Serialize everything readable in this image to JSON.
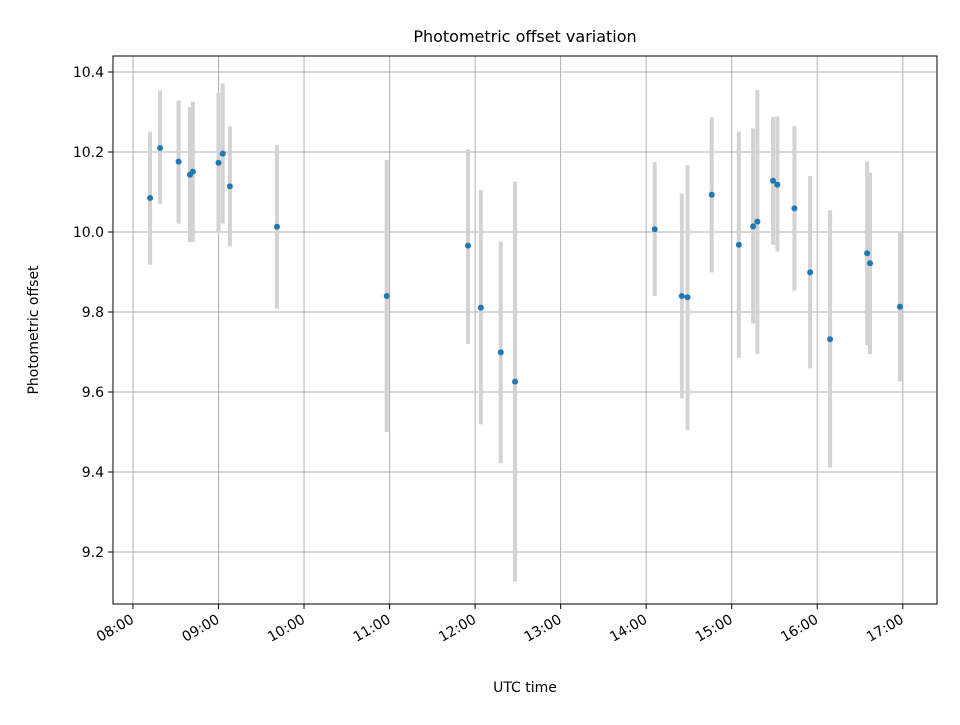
{
  "chart_data": {
    "type": "scatter",
    "title": "Photometric offset variation",
    "xlabel": "UTC time",
    "ylabel": "Photometric offset",
    "x_tick_labels": [
      "08:00",
      "09:00",
      "10:00",
      "11:00",
      "12:00",
      "13:00",
      "14:00",
      "15:00",
      "16:00",
      "17:00"
    ],
    "x_tick_values": [
      "08:00",
      "09:00",
      "10:00",
      "11:00",
      "12:00",
      "13:00",
      "14:00",
      "15:00",
      "16:00",
      "17:00"
    ],
    "xlim": [
      "07:46",
      "17:24"
    ],
    "y_ticks": [
      9.2,
      9.4,
      9.6,
      9.8,
      10.0,
      10.2,
      10.4
    ],
    "y_tick_labels": [
      "9.2",
      "9.4",
      "9.6",
      "9.8",
      "10.0",
      "10.2",
      "10.4"
    ],
    "ylim": [
      9.07,
      10.44
    ],
    "grid": true,
    "legend": false,
    "colors": {
      "marker": "#1f77b4",
      "errorbar": "#d3d3d3",
      "grid": "#b0b0b0"
    },
    "series": [
      {
        "points": [
          {
            "x": "08:12",
            "y": 10.085,
            "ylow": 9.918,
            "yhigh": 10.251
          },
          {
            "x": "08:19",
            "y": 10.21,
            "ylow": 10.07,
            "yhigh": 10.354
          },
          {
            "x": "08:32",
            "y": 10.176,
            "ylow": 10.021,
            "yhigh": 10.329
          },
          {
            "x": "08:40",
            "y": 10.143,
            "ylow": 9.974,
            "yhigh": 10.312
          },
          {
            "x": "08:42",
            "y": 10.151,
            "ylow": 9.976,
            "yhigh": 10.326
          },
          {
            "x": "09:00",
            "y": 10.173,
            "ylow": 9.997,
            "yhigh": 10.348
          },
          {
            "x": "09:03",
            "y": 10.196,
            "ylow": 10.021,
            "yhigh": 10.371
          },
          {
            "x": "09:08",
            "y": 10.114,
            "ylow": 9.964,
            "yhigh": 10.264
          },
          {
            "x": "09:41",
            "y": 10.013,
            "ylow": 9.808,
            "yhigh": 10.218
          },
          {
            "x": "10:58",
            "y": 9.84,
            "ylow": 9.5,
            "yhigh": 10.18
          },
          {
            "x": "11:55",
            "y": 9.966,
            "ylow": 9.72,
            "yhigh": 10.207
          },
          {
            "x": "12:04",
            "y": 9.811,
            "ylow": 9.519,
            "yhigh": 10.105
          },
          {
            "x": "12:18",
            "y": 9.699,
            "ylow": 9.422,
            "yhigh": 9.976
          },
          {
            "x": "12:28",
            "y": 9.626,
            "ylow": 9.126,
            "yhigh": 10.126
          },
          {
            "x": "14:06",
            "y": 10.007,
            "ylow": 9.84,
            "yhigh": 10.175
          },
          {
            "x": "14:25",
            "y": 9.84,
            "ylow": 9.584,
            "yhigh": 10.096
          },
          {
            "x": "14:29",
            "y": 9.837,
            "ylow": 9.505,
            "yhigh": 10.167
          },
          {
            "x": "14:46",
            "y": 10.093,
            "ylow": 9.899,
            "yhigh": 10.287
          },
          {
            "x": "15:05",
            "y": 9.968,
            "ylow": 9.685,
            "yhigh": 10.251
          },
          {
            "x": "15:15",
            "y": 10.014,
            "ylow": 9.771,
            "yhigh": 10.259
          },
          {
            "x": "15:18",
            "y": 10.026,
            "ylow": 9.695,
            "yhigh": 10.355
          },
          {
            "x": "15:29",
            "y": 10.128,
            "ylow": 9.968,
            "yhigh": 10.287
          },
          {
            "x": "15:32",
            "y": 10.118,
            "ylow": 9.951,
            "yhigh": 10.289
          },
          {
            "x": "15:44",
            "y": 10.059,
            "ylow": 9.853,
            "yhigh": 10.265
          },
          {
            "x": "15:55",
            "y": 9.899,
            "ylow": 9.659,
            "yhigh": 10.14
          },
          {
            "x": "16:09",
            "y": 9.732,
            "ylow": 9.411,
            "yhigh": 10.054
          },
          {
            "x": "16:35",
            "y": 9.947,
            "ylow": 9.717,
            "yhigh": 10.176
          },
          {
            "x": "16:37",
            "y": 9.922,
            "ylow": 9.694,
            "yhigh": 10.148
          },
          {
            "x": "16:58",
            "y": 9.813,
            "ylow": 9.626,
            "yhigh": 10.0
          }
        ]
      }
    ]
  }
}
